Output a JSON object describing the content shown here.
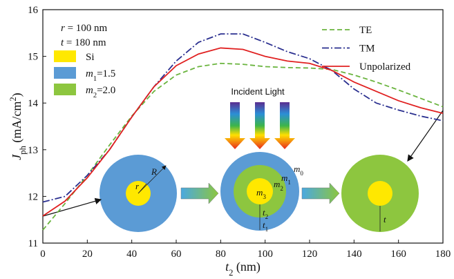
{
  "chart_data": {
    "type": "line",
    "x_label": [
      {
        "text": "t",
        "style": "italic"
      },
      {
        "text": "2",
        "style": "sub"
      },
      {
        "text": " (nm)"
      }
    ],
    "y_label": [
      {
        "text": "J",
        "style": "italic"
      },
      {
        "text": "ph",
        "style": "sub"
      },
      {
        "text": " (mA/cm"
      },
      {
        "text": "2",
        "style": "sup"
      },
      {
        "text": ")"
      }
    ],
    "x": [
      0,
      10,
      20,
      30,
      40,
      50,
      60,
      70,
      80,
      90,
      100,
      110,
      120,
      130,
      140,
      150,
      160,
      170,
      180
    ],
    "series": [
      {
        "name": "TE",
        "color": "#6ab43e",
        "dash": "7,4",
        "values": [
          11.28,
          11.85,
          12.45,
          13.1,
          13.72,
          14.25,
          14.6,
          14.78,
          14.85,
          14.83,
          14.78,
          14.76,
          14.75,
          14.72,
          14.6,
          14.45,
          14.28,
          14.1,
          13.92
        ]
      },
      {
        "name": "TM",
        "color": "#2a2f8f",
        "dash": "10,3,2,3",
        "values": [
          11.88,
          12.0,
          12.45,
          13.0,
          13.7,
          14.35,
          14.9,
          15.3,
          15.48,
          15.48,
          15.3,
          15.1,
          14.95,
          14.7,
          14.3,
          14.0,
          13.85,
          13.72,
          13.62
        ]
      },
      {
        "name": "Unpolarized",
        "color": "#e02020",
        "dash": "",
        "values": [
          11.58,
          11.9,
          12.4,
          13.0,
          13.7,
          14.35,
          14.8,
          15.05,
          15.18,
          15.15,
          15.0,
          14.9,
          14.85,
          14.7,
          14.45,
          14.25,
          14.05,
          13.9,
          13.78
        ]
      }
    ],
    "xlim": [
      0,
      180
    ],
    "xticks": [
      0,
      20,
      40,
      60,
      80,
      100,
      120,
      140,
      160,
      180
    ],
    "ylim": [
      11,
      16
    ],
    "yticks": [
      11,
      12,
      13,
      14,
      15,
      16
    ],
    "legend": "top-right",
    "params": [
      [
        {
          "text": "r",
          "style": "italic"
        },
        {
          "text": " = 100 nm"
        }
      ],
      [
        {
          "text": "t",
          "style": "italic"
        },
        {
          "text": " = 180 nm"
        }
      ]
    ],
    "inset_legend": [
      {
        "color": "#ffe800",
        "label": [
          {
            "text": "Si"
          }
        ]
      },
      {
        "color": "#5b9bd5",
        "label": [
          {
            "text": "m",
            "style": "italic"
          },
          {
            "text": "1",
            "style": "sub"
          },
          {
            "text": "=1.5"
          }
        ]
      },
      {
        "color": "#8dc63f",
        "label": [
          {
            "text": "m",
            "style": "italic"
          },
          {
            "text": "2",
            "style": "sub"
          },
          {
            "text": "=2.0"
          }
        ]
      }
    ],
    "incident": "Incident Light",
    "diagram_labels": [
      [
        {
          "text": "R",
          "style": "italic"
        }
      ],
      [
        {
          "text": "r",
          "style": "italic"
        }
      ],
      [
        {
          "text": "m",
          "style": "italic"
        },
        {
          "text": "0",
          "style": "sub"
        }
      ],
      [
        {
          "text": "m",
          "style": "italic"
        },
        {
          "text": "1",
          "style": "sub"
        }
      ],
      [
        {
          "text": "m",
          "style": "italic"
        },
        {
          "text": "2",
          "style": "sub"
        }
      ],
      [
        {
          "text": "m",
          "style": "italic"
        },
        {
          "text": "3",
          "style": "sub"
        }
      ],
      [
        {
          "text": "t",
          "style": "italic"
        },
        {
          "text": "2",
          "style": "sub"
        }
      ],
      [
        {
          "text": "t",
          "style": "italic"
        },
        {
          "text": "1",
          "style": "sub"
        }
      ],
      [
        {
          "text": "t",
          "style": "italic"
        }
      ]
    ]
  }
}
